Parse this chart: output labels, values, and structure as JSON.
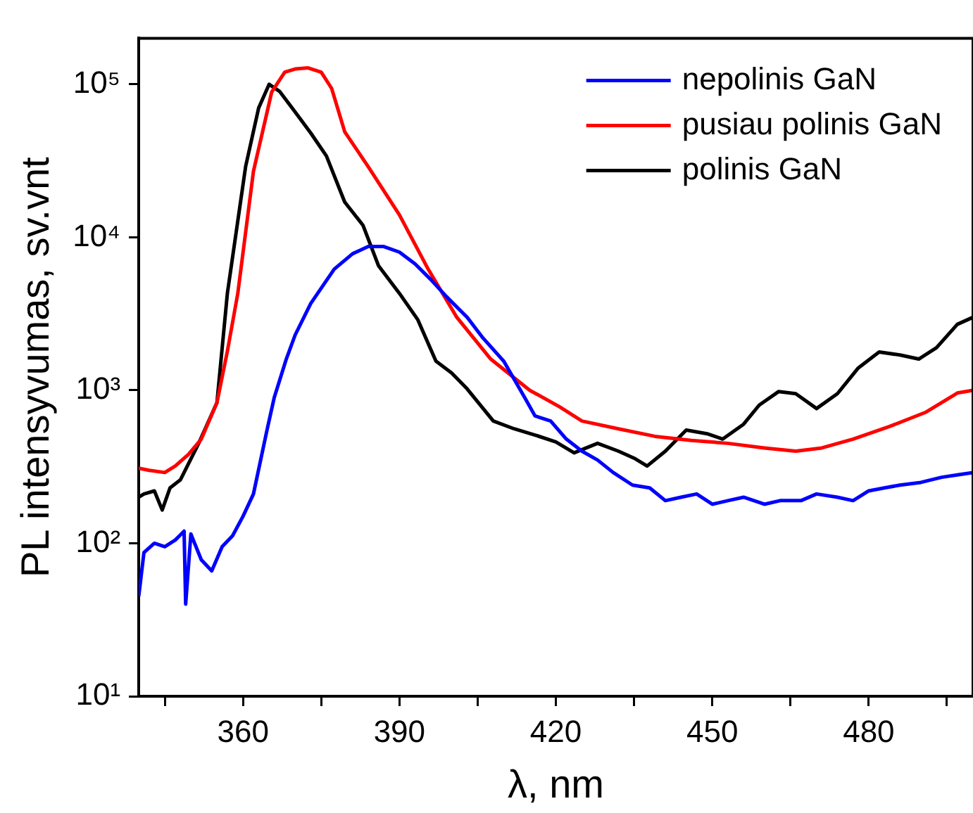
{
  "chart_data": {
    "type": "line",
    "xlabel": "λ, nm",
    "ylabel": "PL intensyvumas, sv.vnt",
    "log": "y",
    "grid": false,
    "legend": "top right",
    "marker": "none",
    "line_style": "solid",
    "xlim": [
      340,
      500
    ],
    "ylim": [
      10,
      200000
    ],
    "xticks": [
      {
        "value": 345,
        "label": null
      },
      360,
      {
        "value": 375,
        "label": null
      },
      390,
      {
        "value": 405,
        "label": null
      },
      420,
      {
        "value": 435,
        "label": null
      },
      450,
      {
        "value": 465,
        "label": null
      },
      480,
      {
        "value": 495,
        "label": null
      }
    ],
    "yticks": [
      {
        "value": 10,
        "label": "10¹"
      },
      {
        "value": 100,
        "label": "10²"
      },
      {
        "value": 1000,
        "label": "10³"
      },
      {
        "value": 10000,
        "label": "10⁴"
      },
      {
        "value": 100000,
        "label": "10⁵"
      }
    ],
    "series": [
      {
        "name": "nepolinis GaN",
        "color": "#0000ff",
        "x": [
          340,
          341,
          343,
          345,
          347,
          348.7,
          349,
          350,
          352,
          354,
          356,
          358,
          360,
          362,
          364.6,
          366,
          368.3,
          370,
          373,
          377.5,
          381,
          384,
          387,
          390,
          393,
          396,
          399,
          403,
          406,
          410,
          414,
          416,
          419,
          422,
          425,
          428,
          431,
          434.7,
          438,
          441,
          444,
          447,
          450,
          453,
          456,
          460,
          463,
          467,
          470,
          474,
          477,
          480,
          483,
          486,
          490,
          494,
          497,
          500
        ],
        "values": [
          45,
          87,
          100,
          95,
          105,
          120,
          40,
          115,
          78,
          66,
          95,
          112,
          150,
          210,
          550,
          900,
          1600,
          2300,
          3700,
          6200,
          7800,
          8700,
          8700,
          8000,
          6700,
          5300,
          4100,
          3000,
          2200,
          1550,
          900,
          680,
          630,
          480,
          400,
          350,
          290,
          240,
          230,
          190,
          200,
          210,
          180,
          190,
          200,
          180,
          190,
          190,
          210,
          200,
          190,
          220,
          230,
          240,
          250,
          270,
          280,
          290
        ]
      },
      {
        "name": "pusiau polinis GaN",
        "color": "#ff0000",
        "x": [
          340,
          342,
          345,
          347,
          349.5,
          352,
          355,
          357,
          359,
          362,
          365.5,
          368,
          370,
          372.5,
          375,
          377,
          379.5,
          384,
          390,
          395.5,
          401,
          407.5,
          415,
          420.7,
          425,
          432,
          439,
          446,
          453,
          460,
          466,
          471,
          477,
          484,
          491,
          497,
          500
        ],
        "values": [
          310,
          300,
          290,
          320,
          380,
          480,
          830,
          1800,
          4300,
          27000,
          89000,
          120000,
          126000,
          128000,
          120000,
          94000,
          49000,
          29000,
          14000,
          6200,
          3000,
          1600,
          1000,
          780,
          630,
          560,
          500,
          470,
          450,
          420,
          400,
          420,
          480,
          580,
          720,
          960,
          1000
        ]
      },
      {
        "name": "polinis GaN",
        "color": "#000000",
        "x": [
          340,
          341,
          343,
          344.5,
          346,
          348,
          351.5,
          355,
          357,
          360.5,
          363,
          365,
          367,
          370,
          373,
          376,
          379.5,
          383,
          386,
          390,
          393.5,
          397,
          400,
          403,
          408,
          412,
          416,
          420,
          423.5,
          428,
          432,
          435,
          437.5,
          441,
          445,
          449,
          452,
          456,
          459,
          462.7,
          466,
          470,
          474,
          478,
          482,
          486,
          489.6,
          493,
          497,
          500
        ],
        "values": [
          200,
          210,
          220,
          165,
          230,
          260,
          450,
          830,
          4300,
          29000,
          70000,
          100000,
          90000,
          66000,
          48000,
          34000,
          17000,
          12000,
          6500,
          4300,
          2900,
          1550,
          1300,
          1020,
          630,
          560,
          510,
          460,
          390,
          450,
          400,
          360,
          320,
          400,
          550,
          520,
          480,
          600,
          800,
          980,
          950,
          760,
          950,
          1400,
          1780,
          1700,
          1600,
          1900,
          2700,
          3000
        ]
      }
    ]
  }
}
